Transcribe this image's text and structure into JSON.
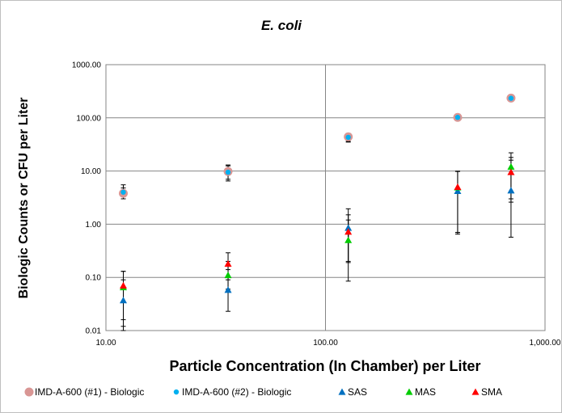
{
  "chart_data": {
    "type": "scatter",
    "title": "E. coli",
    "xlabel": "Particle Concentration (In Chamber) per Liter",
    "ylabel": "Biologic Counts or CFU per Liter",
    "x_scale": "log",
    "y_scale": "log",
    "xlim": [
      10,
      1000
    ],
    "ylim": [
      0.01,
      1000
    ],
    "x_ticks": [
      10,
      100,
      1000
    ],
    "x_tick_labels": [
      "10.00",
      "100.00",
      "1,000.00"
    ],
    "y_ticks": [
      0.01,
      0.1,
      1,
      10,
      100,
      1000
    ],
    "y_tick_labels": [
      "0.01",
      "0.10",
      "1.00",
      "10.00",
      "100.00",
      "1000.00"
    ],
    "grid": true,
    "legend_position": "bottom",
    "series": [
      {
        "name": "IMD-A-600 (#1) - Biologic",
        "marker": "circle-large",
        "color": "#d99694",
        "points": [
          {
            "x": 12,
            "y": 3.8,
            "err_low": 3.0,
            "err_high": 4.8
          },
          {
            "x": 36,
            "y": 9.8,
            "err_low": 7.0,
            "err_high": 12.5
          },
          {
            "x": 127,
            "y": 44,
            "err_low": 36,
            "err_high": 47
          },
          {
            "x": 400,
            "y": 102,
            "err_low": 97,
            "err_high": 107
          },
          {
            "x": 700,
            "y": 235,
            "err_low": 225,
            "err_high": 245
          }
        ]
      },
      {
        "name": "IMD-A-600 (#2) - Biologic",
        "marker": "circle-small",
        "color": "#00b0f0",
        "points": [
          {
            "x": 12,
            "y": 4.0,
            "err_low": 3.3,
            "err_high": 5.5
          },
          {
            "x": 36,
            "y": 9.5,
            "err_low": 6.5,
            "err_high": 13
          },
          {
            "x": 127,
            "y": 43,
            "err_low": 35,
            "err_high": 46
          },
          {
            "x": 400,
            "y": 102,
            "err_low": 97,
            "err_high": 107
          },
          {
            "x": 700,
            "y": 233,
            "err_low": 223,
            "err_high": 243
          }
        ]
      },
      {
        "name": "SAS",
        "marker": "triangle",
        "color": "#0070c0",
        "points": [
          {
            "x": 12,
            "y": 0.037,
            "err_low": 0.016,
            "err_high": 0.09
          },
          {
            "x": 36,
            "y": 0.058,
            "err_low": 0.023,
            "err_high": 0.14
          },
          {
            "x": 127,
            "y": 0.85,
            "err_low": 0.19,
            "err_high": 1.95
          },
          {
            "x": 400,
            "y": 4.2,
            "err_low": 0.65,
            "err_high": 9.8
          },
          {
            "x": 700,
            "y": 4.3,
            "err_low": 0.57,
            "err_high": 16
          }
        ]
      },
      {
        "name": "MAS",
        "marker": "triangle",
        "color": "#00cc00",
        "points": [
          {
            "x": 12,
            "y": 0.065,
            "err_low": 0.012,
            "err_high": 0.13
          },
          {
            "x": 36,
            "y": 0.11,
            "err_low": 0.06,
            "err_high": 0.2
          },
          {
            "x": 127,
            "y": 0.5,
            "err_low": 0.085,
            "err_high": 1.2
          },
          {
            "x": 400,
            "y": 4.9,
            "err_low": 0.7,
            "err_high": 9.9
          },
          {
            "x": 700,
            "y": 12,
            "err_low": 2.6,
            "err_high": 22
          }
        ]
      },
      {
        "name": "SMA",
        "marker": "triangle",
        "color": "#ff0000",
        "points": [
          {
            "x": 12,
            "y": 0.07,
            "err_low": 0.01,
            "err_high": 0.13
          },
          {
            "x": 36,
            "y": 0.18,
            "err_low": 0.09,
            "err_high": 0.29
          },
          {
            "x": 127,
            "y": 0.72,
            "err_low": 0.2,
            "err_high": 1.5
          },
          {
            "x": 400,
            "y": 5.0,
            "err_low": 0.7,
            "err_high": 9.9
          },
          {
            "x": 700,
            "y": 9.5,
            "err_low": 3.0,
            "err_high": 18
          }
        ]
      }
    ]
  }
}
